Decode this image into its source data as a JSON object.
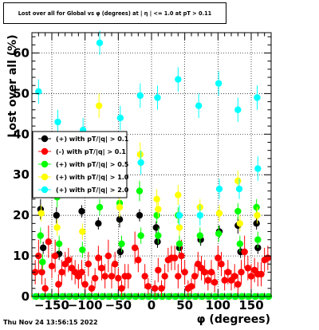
{
  "header": {
    "title": "Lost over all for Global vs φ (degrees) at |  η | <= 1.0 at pT > 0.11"
  },
  "footer": {
    "timestamp": "Thu Nov 24 13:56:15 2022"
  },
  "chart_data": {
    "type": "scatter",
    "title": "Lost over all for Global vs φ (degrees) at |  η | <= 1.0 at pT > 0.11",
    "xlabel": "φ (degrees)",
    "ylabel": "Lost over all (%)",
    "xlim": [
      -180,
      180
    ],
    "ylim": [
      0,
      65
    ],
    "x_ticks": [
      -150,
      -100,
      -50,
      0,
      50,
      100,
      150
    ],
    "x_tick_labels": [
      "−150",
      "−100",
      "−50",
      "0",
      "50",
      "100",
      "150"
    ],
    "y_ticks": [
      0,
      10,
      20,
      30,
      40,
      50,
      60
    ],
    "y_tick_labels": [
      "0",
      "10",
      "20",
      "30",
      "40",
      "50",
      "60"
    ],
    "grid": true,
    "legend_position": "middle-left",
    "series": [
      {
        "name": "(+) with pT/|q| > 0.1",
        "color": "#000000",
        "points": [
          {
            "x": -167,
            "y": 21.5,
            "e": 2.5
          },
          {
            "x": -163,
            "y": 12,
            "e": 1.5
          },
          {
            "x": -143,
            "y": 20,
            "e": 2
          },
          {
            "x": -139,
            "y": 10.5,
            "e": 1.5
          },
          {
            "x": -105,
            "y": 21,
            "e": 1.5
          },
          {
            "x": -80,
            "y": 18,
            "e": 1.5
          },
          {
            "x": -48,
            "y": 19,
            "e": 2
          },
          {
            "x": -47,
            "y": 11,
            "e": 1.5
          },
          {
            "x": -18,
            "y": 20,
            "e": 1.5
          },
          {
            "x": 7,
            "y": 17,
            "e": 1.5
          },
          {
            "x": 9,
            "y": 13.5,
            "e": 1.5
          },
          {
            "x": 42,
            "y": 12,
            "e": 1.5
          },
          {
            "x": 74,
            "y": 14,
            "e": 1.5
          },
          {
            "x": 102,
            "y": 16,
            "e": 1.5
          },
          {
            "x": 130,
            "y": 17.5,
            "e": 2
          },
          {
            "x": 134,
            "y": 11,
            "e": 1.5
          },
          {
            "x": 158,
            "y": 18,
            "e": 1.5
          },
          {
            "x": 160,
            "y": 12,
            "e": 1.5
          }
        ]
      },
      {
        "name": "(-) with pT/|q| > 0.1",
        "color": "#ff0000",
        "points": [
          {
            "x": -175,
            "y": 6,
            "e": 3
          },
          {
            "x": -170,
            "y": 10,
            "e": 4
          },
          {
            "x": -165,
            "y": 6,
            "e": 3
          },
          {
            "x": -160,
            "y": 2,
            "e": 2.5
          },
          {
            "x": -155,
            "y": 13.5,
            "e": 4
          },
          {
            "x": -150,
            "y": 7.5,
            "e": 3
          },
          {
            "x": -145,
            "y": 10,
            "e": 4
          },
          {
            "x": -140,
            "y": 3,
            "e": 2.5
          },
          {
            "x": -135,
            "y": 6,
            "e": 3
          },
          {
            "x": -130,
            "y": 8,
            "e": 3
          },
          {
            "x": -125,
            "y": 9,
            "e": 3
          },
          {
            "x": -120,
            "y": 7,
            "e": 3
          },
          {
            "x": -115,
            "y": 6,
            "e": 3
          },
          {
            "x": -110,
            "y": 5,
            "e": 3
          },
          {
            "x": -105,
            "y": 6,
            "e": 3
          },
          {
            "x": -100,
            "y": 3,
            "e": 2.5
          },
          {
            "x": -95,
            "y": 8,
            "e": 3
          },
          {
            "x": -90,
            "y": 2,
            "e": 2
          },
          {
            "x": -85,
            "y": 4.5,
            "e": 2.5
          },
          {
            "x": -80,
            "y": 9.5,
            "e": 3
          },
          {
            "x": -75,
            "y": 7,
            "e": 3
          },
          {
            "x": -70,
            "y": 5,
            "e": 3
          },
          {
            "x": -65,
            "y": 10,
            "e": 4
          },
          {
            "x": -60,
            "y": 5,
            "e": 3
          },
          {
            "x": -55,
            "y": 8,
            "e": 3
          },
          {
            "x": -50,
            "y": 4.5,
            "e": 2.5
          },
          {
            "x": -45,
            "y": 2,
            "e": 2
          },
          {
            "x": -40,
            "y": 5,
            "e": 3
          },
          {
            "x": -35,
            "y": 5,
            "e": 3
          },
          {
            "x": -25,
            "y": 12,
            "e": 4
          },
          {
            "x": -20,
            "y": 9,
            "e": 3
          },
          {
            "x": -10,
            "y": 5,
            "e": 3
          },
          {
            "x": -5,
            "y": 2.5,
            "e": 2
          },
          {
            "x": 5,
            "y": 2,
            "e": 2
          },
          {
            "x": 10,
            "y": 6.5,
            "e": 3
          },
          {
            "x": 15,
            "y": 2,
            "e": 2
          },
          {
            "x": 20,
            "y": 5,
            "e": 3
          },
          {
            "x": 25,
            "y": 9,
            "e": 3
          },
          {
            "x": 30,
            "y": 9.5,
            "e": 3
          },
          {
            "x": 35,
            "y": 9.5,
            "e": 3
          },
          {
            "x": 40,
            "y": 5,
            "e": 3
          },
          {
            "x": 45,
            "y": 10,
            "e": 4
          },
          {
            "x": 50,
            "y": 6,
            "e": 3
          },
          {
            "x": 55,
            "y": 2,
            "e": 2
          },
          {
            "x": 60,
            "y": 2.5,
            "e": 2
          },
          {
            "x": 65,
            "y": 5,
            "e": 3
          },
          {
            "x": 70,
            "y": 8,
            "e": 3
          },
          {
            "x": 75,
            "y": 7,
            "e": 3
          },
          {
            "x": 80,
            "y": 6,
            "e": 3
          },
          {
            "x": 85,
            "y": 4,
            "e": 2.5
          },
          {
            "x": 90,
            "y": 6,
            "e": 3
          },
          {
            "x": 95,
            "y": 3.5,
            "e": 2.5
          },
          {
            "x": 100,
            "y": 9.5,
            "e": 3
          },
          {
            "x": 105,
            "y": 8,
            "e": 3
          },
          {
            "x": 110,
            "y": 4,
            "e": 2.5
          },
          {
            "x": 115,
            "y": 6,
            "e": 3
          },
          {
            "x": 120,
            "y": 4,
            "e": 2.5
          },
          {
            "x": 125,
            "y": 5,
            "e": 3
          },
          {
            "x": 130,
            "y": 3,
            "e": 2.5
          },
          {
            "x": 135,
            "y": 6,
            "e": 3
          },
          {
            "x": 140,
            "y": 11,
            "e": 4
          },
          {
            "x": 145,
            "y": 7,
            "e": 3
          },
          {
            "x": 150,
            "y": 5,
            "e": 3
          },
          {
            "x": 155,
            "y": 6.5,
            "e": 3
          },
          {
            "x": 160,
            "y": 5.5,
            "e": 3
          },
          {
            "x": 165,
            "y": 5.5,
            "e": 3
          },
          {
            "x": 170,
            "y": 9,
            "e": 3
          },
          {
            "x": 175,
            "y": 9.5,
            "e": 3
          }
        ]
      },
      {
        "name": "(+) with pT/|q| > 0.5",
        "color": "#00ff00",
        "points": [
          {
            "x": -167,
            "y": 15,
            "e": 2
          },
          {
            "x": -164,
            "y": 8.5,
            "e": 2
          },
          {
            "x": -142,
            "y": 24.5,
            "e": 2.5
          },
          {
            "x": -139,
            "y": 13,
            "e": 2
          },
          {
            "x": -104,
            "y": 11.5,
            "e": 2
          },
          {
            "x": -78,
            "y": 22,
            "e": 2
          },
          {
            "x": -48,
            "y": 23,
            "e": 2.5
          },
          {
            "x": -45,
            "y": 13,
            "e": 2
          },
          {
            "x": -18,
            "y": 26,
            "e": 2.5
          },
          {
            "x": -16,
            "y": 15,
            "e": 2
          },
          {
            "x": 8,
            "y": 20,
            "e": 2
          },
          {
            "x": 10,
            "y": 15,
            "e": 2
          },
          {
            "x": 40,
            "y": 20,
            "e": 2
          },
          {
            "x": 42,
            "y": 13,
            "e": 2
          },
          {
            "x": 73,
            "y": 15,
            "e": 2
          },
          {
            "x": 101,
            "y": 15.5,
            "e": 2
          },
          {
            "x": 130,
            "y": 21,
            "e": 2
          },
          {
            "x": 133,
            "y": 13,
            "e": 2
          },
          {
            "x": 158,
            "y": 22,
            "e": 2
          },
          {
            "x": 160,
            "y": 14,
            "e": 2
          }
        ]
      },
      {
        "name": "(+) with pT/|q| > 1.0",
        "color": "#ffff00",
        "points": [
          {
            "x": -166,
            "y": 20.5,
            "e": 2
          },
          {
            "x": -142,
            "y": 17,
            "e": 2
          },
          {
            "x": -104,
            "y": 16,
            "e": 2
          },
          {
            "x": -79,
            "y": 47,
            "e": 3
          },
          {
            "x": -48,
            "y": 22,
            "e": 2.5
          },
          {
            "x": -17,
            "y": 35,
            "e": 3
          },
          {
            "x": 8,
            "y": 24,
            "e": 2.5
          },
          {
            "x": 10,
            "y": 21.5,
            "e": 2
          },
          {
            "x": 40,
            "y": 25,
            "e": 2.5
          },
          {
            "x": 42,
            "y": 17,
            "e": 2
          },
          {
            "x": 73,
            "y": 22,
            "e": 2
          },
          {
            "x": 102,
            "y": 20.5,
            "e": 2
          },
          {
            "x": 130,
            "y": 28.5,
            "e": 2.5
          },
          {
            "x": 133,
            "y": 18,
            "e": 2
          },
          {
            "x": 159,
            "y": 20,
            "e": 2
          }
        ]
      },
      {
        "name": "(+) with pT/|q| > 2.0",
        "color": "#00ffff",
        "points": [
          {
            "x": -170,
            "y": 50.5,
            "e": 3
          },
          {
            "x": -141,
            "y": 43,
            "e": 3
          },
          {
            "x": -103,
            "y": 41,
            "e": 3
          },
          {
            "x": -78,
            "y": 62.5,
            "e": 3
          },
          {
            "x": -47,
            "y": 44,
            "e": 3
          },
          {
            "x": -17,
            "y": 49.5,
            "e": 3
          },
          {
            "x": -16,
            "y": 33,
            "e": 3
          },
          {
            "x": 9,
            "y": 49,
            "e": 3
          },
          {
            "x": 40,
            "y": 53.5,
            "e": 3
          },
          {
            "x": 42,
            "y": 20,
            "e": 2.5
          },
          {
            "x": 71,
            "y": 47,
            "e": 3
          },
          {
            "x": 73,
            "y": 20,
            "e": 2.5
          },
          {
            "x": 101,
            "y": 52.5,
            "e": 3
          },
          {
            "x": 102,
            "y": 26.5,
            "e": 2.5
          },
          {
            "x": 130,
            "y": 46,
            "e": 3
          },
          {
            "x": 132,
            "y": 26.5,
            "e": 2.5
          },
          {
            "x": 159,
            "y": 49,
            "e": 3
          },
          {
            "x": 160,
            "y": 31.5,
            "e": 3
          }
        ]
      }
    ],
    "baseline_points": {
      "note_series_colors": [
        "#ffff00",
        "#00ffff",
        "#00ff00"
      ],
      "x": [
        -175,
        -165,
        -155,
        -145,
        -135,
        -125,
        -115,
        -105,
        -95,
        -85,
        -75,
        -65,
        -55,
        -45,
        -35,
        -25,
        -15,
        -5,
        5,
        15,
        25,
        35,
        45,
        55,
        65,
        75,
        85,
        95,
        105,
        115,
        125,
        135,
        145,
        155,
        165,
        175
      ],
      "y": 0
    }
  }
}
